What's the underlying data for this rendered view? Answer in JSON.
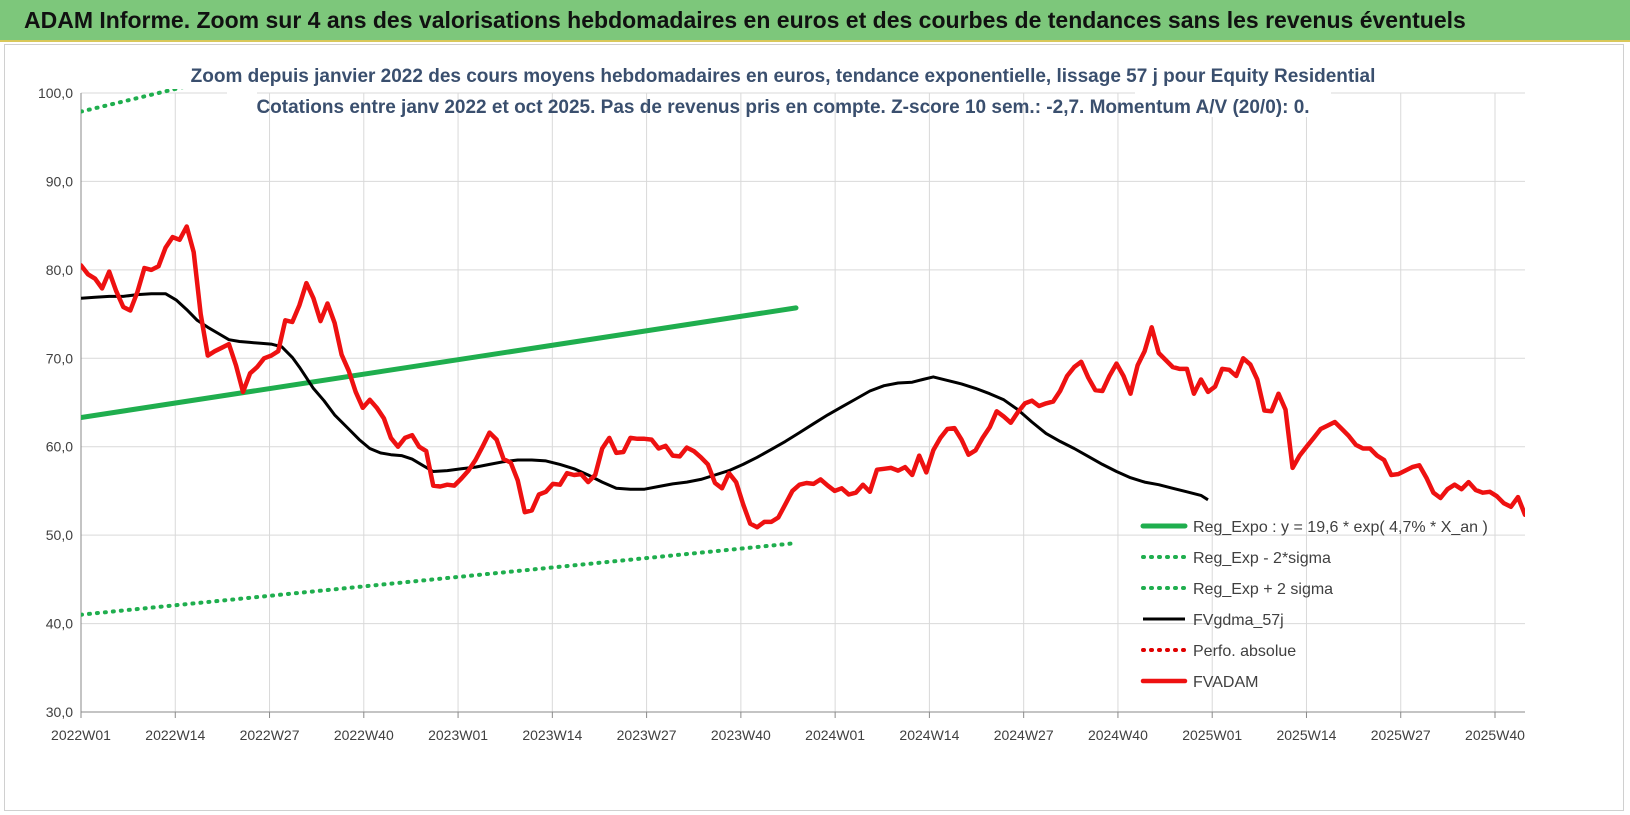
{
  "banner": {
    "title": "ADAM Informe. Zoom sur 4 ans des valorisations hebdomadaires en euros et des courbes de tendances sans les revenus éventuels"
  },
  "chart_data": {
    "type": "line",
    "title_lines": [
      "Zoom depuis janvier 2022 des cours moyens hebdomadaires en euros, tendance exponentielle, lissage 57 j pour Equity Residential",
      "Cotations entre janv 2022 et oct 2025. Pas de revenus pris en compte. Z-score 10 sem.: -2,7.  Momentum A/V (20/0): 0."
    ],
    "xlabel": "",
    "ylabel": "",
    "ylim": [
      30,
      100
    ],
    "y_ticks": [
      "30,0",
      "40,0",
      "50,0",
      "60,0",
      "70,0",
      "80,0",
      "90,0",
      "100,0"
    ],
    "x_tick_labels": [
      "2022W01",
      "2022W14",
      "2022W27",
      "2022W40",
      "2023W01",
      "2023W14",
      "2023W27",
      "2023W40",
      "2024W01",
      "2024W14",
      "2024W27",
      "2024W40",
      "2025W01",
      "2025W14",
      "2025W27",
      "2025W40"
    ],
    "grid": true,
    "legend_position": "bottom-right",
    "colors": {
      "reg_expo": "#1fae4e",
      "sigma_bands": "#1fae4e",
      "fvgdma": "#000000",
      "perfo": "#e00000",
      "fvadam": "#ee1111",
      "grid": "#d9d9d9",
      "banner": "#7dc77b"
    },
    "series": [
      {
        "name": "Reg_Expo : y = 19,6 * exp( 4,7% *  X_an )",
        "style": "solid-thick",
        "points": [
          [
            0,
            63.3
          ],
          [
            203,
            75.7
          ]
        ]
      },
      {
        "name": "Reg_Exp - 2*sigma",
        "style": "dotted",
        "points": [
          [
            0,
            41.0
          ],
          [
            203,
            49.1
          ]
        ]
      },
      {
        "name": "Reg_Exp + 2 sigma",
        "style": "dotted",
        "points": [
          [
            0,
            97.9
          ],
          [
            203,
            117.3
          ]
        ]
      },
      {
        "name": "FVgdma_57j",
        "style": "solid",
        "points": [
          [
            0,
            76.8
          ],
          [
            4,
            76.9
          ],
          [
            8,
            77.0
          ],
          [
            12,
            77.0
          ],
          [
            16,
            77.2
          ],
          [
            20,
            77.3
          ],
          [
            24,
            77.3
          ],
          [
            27,
            76.6
          ],
          [
            30,
            75.5
          ],
          [
            33,
            74.3
          ],
          [
            36,
            73.5
          ],
          [
            39,
            72.8
          ],
          [
            42,
            72.1
          ],
          [
            45,
            71.9
          ],
          [
            48,
            71.8
          ],
          [
            51,
            71.7
          ],
          [
            54,
            71.6
          ],
          [
            57,
            71.3
          ],
          [
            60,
            70.1
          ],
          [
            62,
            69.0
          ],
          [
            64,
            67.8
          ],
          [
            66,
            66.6
          ],
          [
            69,
            65.2
          ],
          [
            72,
            63.6
          ],
          [
            76,
            62.0
          ],
          [
            79,
            60.8
          ],
          [
            82,
            59.8
          ],
          [
            85,
            59.3
          ],
          [
            88,
            59.1
          ],
          [
            91,
            59.0
          ],
          [
            94,
            58.6
          ],
          [
            97,
            57.9
          ],
          [
            100,
            57.2
          ],
          [
            104,
            57.3
          ],
          [
            108,
            57.5
          ],
          [
            112,
            57.7
          ],
          [
            116,
            58.0
          ],
          [
            120,
            58.3
          ],
          [
            124,
            58.5
          ],
          [
            128,
            58.5
          ],
          [
            132,
            58.4
          ],
          [
            136,
            58.0
          ],
          [
            140,
            57.5
          ],
          [
            144,
            56.8
          ],
          [
            148,
            56.0
          ],
          [
            152,
            55.3
          ],
          [
            156,
            55.2
          ],
          [
            160,
            55.2
          ],
          [
            164,
            55.5
          ],
          [
            168,
            55.8
          ],
          [
            172,
            56.0
          ],
          [
            176,
            56.3
          ],
          [
            180,
            56.8
          ],
          [
            184,
            57.3
          ],
          [
            188,
            58.0
          ],
          [
            192,
            58.8
          ],
          [
            196,
            59.7
          ],
          [
            200,
            60.6
          ],
          [
            204,
            61.6
          ],
          [
            208,
            62.6
          ],
          [
            212,
            63.6
          ],
          [
            216,
            64.5
          ],
          [
            220,
            65.4
          ],
          [
            224,
            66.3
          ],
          [
            228,
            66.9
          ],
          [
            232,
            67.2
          ],
          [
            236,
            67.3
          ],
          [
            239,
            67.6
          ],
          [
            242,
            67.9
          ],
          [
            246,
            67.5
          ],
          [
            250,
            67.1
          ],
          [
            254,
            66.6
          ],
          [
            258,
            66.0
          ],
          [
            262,
            65.3
          ],
          [
            266,
            64.2
          ],
          [
            270,
            62.8
          ],
          [
            274,
            61.5
          ],
          [
            278,
            60.6
          ],
          [
            282,
            59.8
          ],
          [
            286,
            58.9
          ],
          [
            290,
            58.0
          ],
          [
            294,
            57.2
          ],
          [
            298,
            56.5
          ],
          [
            302,
            56.0
          ],
          [
            306,
            55.7
          ],
          [
            310,
            55.3
          ],
          [
            314,
            54.9
          ],
          [
            318,
            54.5
          ],
          [
            320,
            54.0
          ]
        ]
      },
      {
        "name": "Perfo. absolue",
        "style": "dotted",
        "points": []
      },
      {
        "name": "FVADAM",
        "style": "solid-thick",
        "points": [
          [
            0,
            80.5
          ],
          [
            2,
            79.5
          ],
          [
            4,
            79.0
          ],
          [
            6,
            77.9
          ],
          [
            8,
            79.8
          ],
          [
            10,
            77.6
          ],
          [
            12,
            75.8
          ],
          [
            14,
            75.4
          ],
          [
            16,
            77.5
          ],
          [
            18,
            80.2
          ],
          [
            20,
            80.0
          ],
          [
            22,
            80.4
          ],
          [
            24,
            82.5
          ],
          [
            26,
            83.7
          ],
          [
            28,
            83.4
          ],
          [
            30,
            84.9
          ],
          [
            32,
            82.0
          ],
          [
            34,
            75.0
          ],
          [
            36,
            70.3
          ],
          [
            38,
            70.8
          ],
          [
            40,
            71.2
          ],
          [
            42,
            71.6
          ],
          [
            44,
            69.2
          ],
          [
            46,
            66.2
          ],
          [
            48,
            68.3
          ],
          [
            50,
            69.0
          ],
          [
            52,
            70.0
          ],
          [
            54,
            70.3
          ],
          [
            56,
            70.8
          ],
          [
            58,
            74.3
          ],
          [
            60,
            74.1
          ],
          [
            62,
            76.0
          ],
          [
            64,
            78.5
          ],
          [
            66,
            76.8
          ],
          [
            68,
            74.2
          ],
          [
            70,
            76.2
          ],
          [
            72,
            74.0
          ],
          [
            74,
            70.4
          ],
          [
            76,
            68.6
          ],
          [
            78,
            66.2
          ],
          [
            80,
            64.4
          ],
          [
            82,
            65.3
          ],
          [
            84,
            64.4
          ],
          [
            86,
            63.2
          ],
          [
            88,
            61.0
          ],
          [
            90,
            60.0
          ],
          [
            92,
            61.0
          ],
          [
            94,
            61.3
          ],
          [
            96,
            60.0
          ],
          [
            98,
            59.5
          ],
          [
            100,
            55.6
          ],
          [
            102,
            55.5
          ],
          [
            104,
            55.7
          ],
          [
            106,
            55.6
          ],
          [
            108,
            56.4
          ],
          [
            110,
            57.3
          ],
          [
            112,
            58.5
          ],
          [
            114,
            60.0
          ],
          [
            116,
            61.6
          ],
          [
            118,
            60.8
          ],
          [
            120,
            58.6
          ],
          [
            122,
            58.2
          ],
          [
            124,
            56.2
          ],
          [
            126,
            52.6
          ],
          [
            128,
            52.8
          ],
          [
            130,
            54.6
          ],
          [
            132,
            54.9
          ],
          [
            134,
            55.8
          ],
          [
            136,
            55.7
          ],
          [
            138,
            57.0
          ],
          [
            140,
            56.8
          ],
          [
            142,
            56.9
          ],
          [
            144,
            56.0
          ],
          [
            146,
            56.8
          ],
          [
            148,
            59.8
          ],
          [
            150,
            61.0
          ],
          [
            152,
            59.3
          ],
          [
            154,
            59.4
          ],
          [
            156,
            61.0
          ],
          [
            158,
            60.9
          ],
          [
            160,
            60.9
          ],
          [
            162,
            60.8
          ],
          [
            164,
            59.8
          ],
          [
            166,
            60.1
          ],
          [
            168,
            59.0
          ],
          [
            170,
            58.9
          ],
          [
            172,
            59.9
          ],
          [
            174,
            59.5
          ],
          [
            176,
            58.8
          ],
          [
            178,
            58.0
          ],
          [
            180,
            55.9
          ],
          [
            182,
            55.3
          ],
          [
            184,
            57.0
          ],
          [
            186,
            56.0
          ],
          [
            188,
            53.5
          ],
          [
            190,
            51.3
          ],
          [
            192,
            50.9
          ],
          [
            194,
            51.5
          ],
          [
            196,
            51.5
          ],
          [
            198,
            52.0
          ],
          [
            200,
            53.5
          ],
          [
            202,
            55.0
          ],
          [
            204,
            55.7
          ],
          [
            206,
            55.9
          ],
          [
            208,
            55.8
          ],
          [
            210,
            56.3
          ],
          [
            212,
            55.6
          ],
          [
            214,
            55.0
          ],
          [
            216,
            55.3
          ],
          [
            218,
            54.6
          ],
          [
            220,
            54.8
          ],
          [
            222,
            55.7
          ],
          [
            224,
            54.9
          ],
          [
            226,
            57.4
          ],
          [
            228,
            57.5
          ],
          [
            230,
            57.6
          ],
          [
            232,
            57.3
          ],
          [
            234,
            57.7
          ],
          [
            236,
            56.8
          ],
          [
            238,
            59.0
          ],
          [
            240,
            57.1
          ],
          [
            242,
            59.6
          ],
          [
            244,
            61.0
          ],
          [
            246,
            62.0
          ],
          [
            248,
            62.1
          ],
          [
            250,
            60.8
          ],
          [
            252,
            59.1
          ],
          [
            254,
            59.6
          ],
          [
            256,
            61.0
          ],
          [
            258,
            62.2
          ],
          [
            260,
            64.0
          ],
          [
            262,
            63.4
          ],
          [
            264,
            62.7
          ],
          [
            266,
            63.9
          ],
          [
            268,
            64.9
          ],
          [
            270,
            65.2
          ],
          [
            272,
            64.6
          ],
          [
            274,
            64.9
          ],
          [
            276,
            65.1
          ],
          [
            278,
            66.3
          ],
          [
            280,
            68.0
          ],
          [
            282,
            69.0
          ],
          [
            284,
            69.6
          ],
          [
            286,
            67.8
          ],
          [
            288,
            66.4
          ],
          [
            290,
            66.3
          ],
          [
            292,
            68.0
          ],
          [
            294,
            69.4
          ],
          [
            296,
            68.0
          ],
          [
            298,
            66.0
          ],
          [
            300,
            69.2
          ],
          [
            302,
            70.8
          ],
          [
            304,
            73.5
          ],
          [
            306,
            70.6
          ],
          [
            308,
            69.8
          ],
          [
            310,
            69.0
          ],
          [
            312,
            68.8
          ],
          [
            314,
            68.8
          ],
          [
            316,
            66.0
          ],
          [
            318,
            67.6
          ],
          [
            320,
            66.2
          ],
          [
            322,
            66.8
          ],
          [
            324,
            68.8
          ],
          [
            326,
            68.7
          ],
          [
            328,
            68.0
          ],
          [
            330,
            70.0
          ],
          [
            332,
            69.3
          ],
          [
            334,
            67.6
          ],
          [
            336,
            64.1
          ],
          [
            338,
            64.0
          ],
          [
            340,
            66.0
          ],
          [
            342,
            64.2
          ],
          [
            344,
            57.6
          ],
          [
            346,
            59.0
          ],
          [
            348,
            60.0
          ],
          [
            350,
            61.0
          ],
          [
            352,
            62.0
          ],
          [
            354,
            62.4
          ],
          [
            356,
            62.8
          ],
          [
            358,
            62.0
          ],
          [
            360,
            61.2
          ],
          [
            362,
            60.2
          ],
          [
            364,
            59.8
          ],
          [
            366,
            59.8
          ],
          [
            368,
            59.0
          ],
          [
            370,
            58.5
          ],
          [
            372,
            56.8
          ],
          [
            374,
            56.9
          ],
          [
            376,
            57.3
          ],
          [
            378,
            57.7
          ],
          [
            380,
            57.9
          ],
          [
            382,
            56.5
          ],
          [
            384,
            54.8
          ],
          [
            386,
            54.2
          ],
          [
            388,
            55.2
          ],
          [
            390,
            55.7
          ],
          [
            392,
            55.2
          ],
          [
            394,
            56.0
          ],
          [
            396,
            55.1
          ],
          [
            398,
            54.8
          ],
          [
            400,
            54.9
          ],
          [
            402,
            54.4
          ],
          [
            404,
            53.6
          ],
          [
            406,
            53.2
          ],
          [
            408,
            54.3
          ],
          [
            410,
            52.3
          ]
        ]
      }
    ]
  }
}
